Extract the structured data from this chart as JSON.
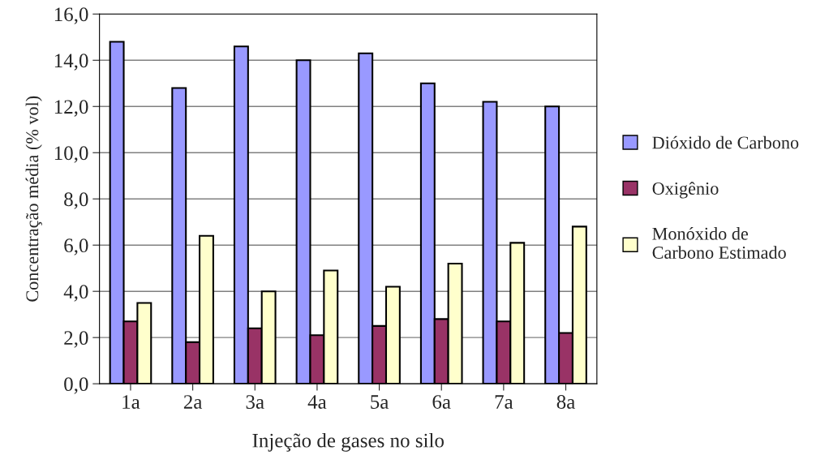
{
  "chart_data": {
    "type": "bar",
    "xlabel": "Injeção de gases no silo",
    "ylabel": "Concentração média (% vol)",
    "categories": [
      "1a",
      "2a",
      "3a",
      "4a",
      "5a",
      "6a",
      "7a",
      "8a"
    ],
    "series": [
      {
        "name": "Dióxido de Carbono",
        "color": "#9999ff",
        "values": [
          14.8,
          12.8,
          14.6,
          14.0,
          14.3,
          13.0,
          12.2,
          12.0
        ]
      },
      {
        "name": "Oxigênio",
        "color": "#993366",
        "values": [
          2.7,
          1.8,
          2.4,
          2.1,
          2.5,
          2.8,
          2.7,
          2.2
        ]
      },
      {
        "name": "Monóxido de\nCarbono Estimado",
        "color": "#ffffcc",
        "values": [
          3.5,
          6.4,
          4.0,
          4.9,
          4.2,
          5.2,
          6.1,
          6.8
        ]
      }
    ],
    "ylim": [
      0,
      16
    ],
    "yticks": [
      {
        "value": 0,
        "label": "0,0"
      },
      {
        "value": 2,
        "label": "2,0"
      },
      {
        "value": 4,
        "label": "4,0"
      },
      {
        "value": 6,
        "label": "6,0"
      },
      {
        "value": 8,
        "label": "8,0"
      },
      {
        "value": 10,
        "label": "10,0"
      },
      {
        "value": 12,
        "label": "12,0"
      },
      {
        "value": 14,
        "label": "14,0"
      },
      {
        "value": 16,
        "label": "16,0"
      }
    ],
    "grid": "y",
    "legend": "right"
  }
}
